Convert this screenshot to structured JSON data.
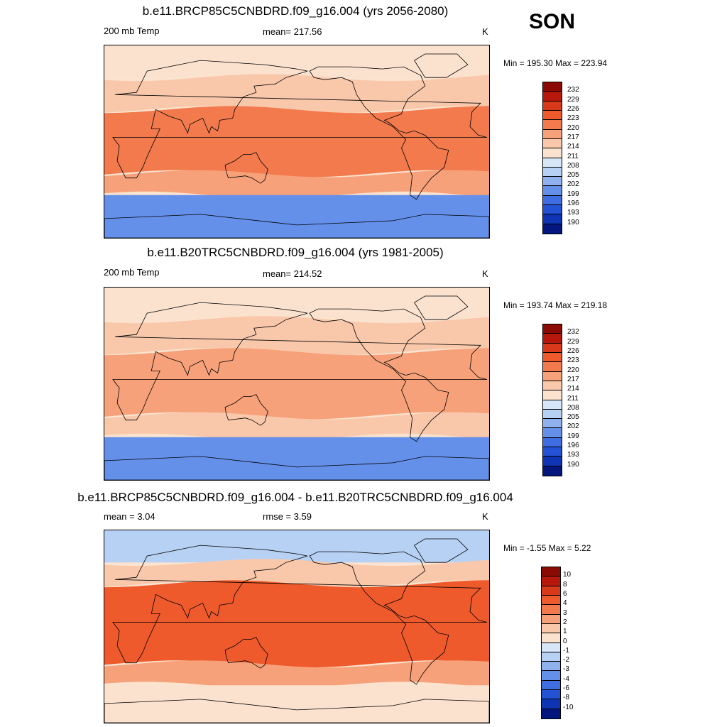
{
  "season": "SON",
  "palette": {
    "warm": [
      "#fbe2cf",
      "#f9c8ab",
      "#f6a17a",
      "#f27a4d",
      "#ee5a2b",
      "#d8391a",
      "#b8180c",
      "#8c0a05"
    ],
    "cool": [
      "#d6e6f8",
      "#b7d1f4",
      "#8fb2ef",
      "#6590ea",
      "#3f6ee3",
      "#2352d5",
      "#0f35b5",
      "#04157e"
    ],
    "land_line": "#000000"
  },
  "panels": [
    {
      "title": "b.e11.BRCP85C5CNBDRD.f09_g16.004 (yrs 2056-2080)",
      "left_label": "200 mb Temp",
      "center_label": "mean= 217.56",
      "units": "K",
      "minmax": "Min = 195.30 Max = 223.94"
    },
    {
      "title": "b.e11.B20TRC5CNBDRD.f09_g16.004 (yrs 1981-2005)",
      "left_label": "200 mb Temp",
      "center_label": "mean= 214.52",
      "units": "K",
      "minmax": "Min = 193.74 Max = 219.18"
    },
    {
      "title": "b.e11.BRCP85C5CNBDRD.f09_g16.004 - b.e11.B20TRC5CNBDRD.f09_g16.004",
      "left_label": "mean =   3.04",
      "center_label": "rmse =   3.59",
      "units": "K",
      "minmax": "Min =  -1.55 Max =   5.22"
    }
  ],
  "colorbars": {
    "absolute": {
      "labels": [
        "232",
        "229",
        "226",
        "223",
        "220",
        "217",
        "214",
        "211",
        "208",
        "205",
        "202",
        "199",
        "196",
        "193",
        "190"
      ],
      "colors": [
        "#8c0a05",
        "#b8180c",
        "#d8391a",
        "#ee5a2b",
        "#f27a4d",
        "#f6a17a",
        "#f9c8ab",
        "#fbe2cf",
        "#d6e6f8",
        "#b7d1f4",
        "#8fb2ef",
        "#6590ea",
        "#3f6ee3",
        "#2352d5",
        "#0f35b5",
        "#04157e"
      ]
    },
    "difference": {
      "labels": [
        "10",
        "8",
        "6",
        "4",
        "3",
        "2",
        "1",
        "0",
        "-1",
        "-2",
        "-3",
        "-4",
        "-6",
        "-8",
        "-10"
      ],
      "colors": [
        "#8c0a05",
        "#b8180c",
        "#d8391a",
        "#ee5a2b",
        "#f27a4d",
        "#f6a17a",
        "#f9c8ab",
        "#fbe2cf",
        "#d6e6f8",
        "#b7d1f4",
        "#8fb2ef",
        "#6590ea",
        "#3f6ee3",
        "#2352d5",
        "#0f35b5",
        "#04157e"
      ]
    }
  },
  "chart_data": [
    {
      "type": "heatmap",
      "title": "b.e11.BRCP85C5CNBDRD.f09_g16.004 (yrs 2056-2080)",
      "variable": "200 mb Temp",
      "units": "K",
      "mean": 217.56,
      "min": 195.3,
      "max": 223.94,
      "contour_levels": [
        190,
        193,
        196,
        199,
        202,
        205,
        208,
        211,
        214,
        217,
        220,
        223,
        226,
        229,
        232
      ],
      "bands": [
        {
          "lat_range": [
            60,
            90
          ],
          "value_class": 211,
          "note_key": "high-lat",
          "tone": 0
        },
        {
          "lat_range": [
            30,
            60
          ],
          "value_class": 214,
          "tone": 1
        },
        {
          "lat_range": [
            -30,
            30
          ],
          "value_class": 223,
          "tone": 3
        },
        {
          "lat_range": [
            -50,
            -30
          ],
          "value_class": 217,
          "tone": 2
        },
        {
          "lat_range": [
            -90,
            -50
          ],
          "value_class": 196,
          "tone": -4
        }
      ]
    },
    {
      "type": "heatmap",
      "title": "b.e11.B20TRC5CNBDRD.f09_g16.004 (yrs 1981-2005)",
      "variable": "200 mb Temp",
      "units": "K",
      "mean": 214.52,
      "min": 193.74,
      "max": 219.18,
      "contour_levels": [
        190,
        193,
        196,
        199,
        202,
        205,
        208,
        211,
        214,
        217,
        220,
        223,
        226,
        229,
        232
      ],
      "bands": [
        {
          "lat_range": [
            60,
            90
          ],
          "value_class": 211,
          "tone": 0
        },
        {
          "lat_range": [
            30,
            60
          ],
          "value_class": 214,
          "tone": 1
        },
        {
          "lat_range": [
            -30,
            30
          ],
          "value_class": 217,
          "tone": 2
        },
        {
          "lat_range": [
            -50,
            -30
          ],
          "value_class": 214,
          "tone": 1
        },
        {
          "lat_range": [
            -90,
            -50
          ],
          "value_class": 196,
          "tone": -4
        }
      ]
    },
    {
      "type": "heatmap",
      "title": "b.e11.BRCP85C5CNBDRD.f09_g16.004 - b.e11.B20TRC5CNBDRD.f09_g16.004",
      "units": "K",
      "mean": 3.04,
      "rmse": 3.59,
      "min": -1.55,
      "max": 5.22,
      "contour_levels": [
        -10,
        -8,
        -6,
        -4,
        -3,
        -2,
        -1,
        0,
        1,
        2,
        3,
        4,
        6,
        8,
        10
      ],
      "bands": [
        {
          "lat_range": [
            60,
            90
          ],
          "value_class": -1,
          "tone": -2
        },
        {
          "lat_range": [
            40,
            60
          ],
          "value_class": 1,
          "tone": 1
        },
        {
          "lat_range": [
            -35,
            40
          ],
          "value_class": 4,
          "tone": 4
        },
        {
          "lat_range": [
            -55,
            -35
          ],
          "value_class": 2,
          "tone": 2
        },
        {
          "lat_range": [
            -90,
            -55
          ],
          "value_class": 0,
          "tone": 0
        }
      ]
    }
  ]
}
